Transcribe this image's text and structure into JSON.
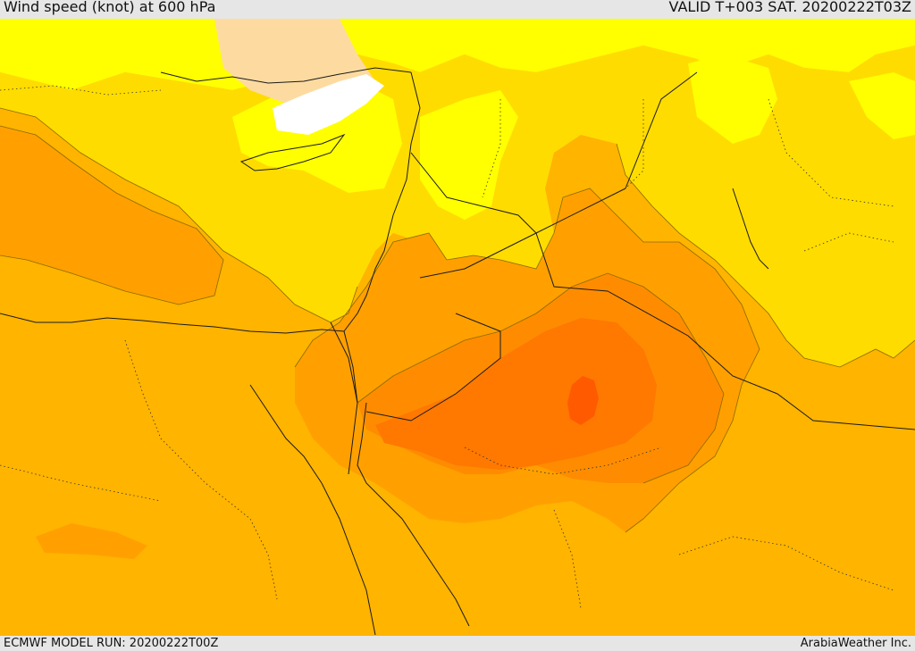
{
  "header": {
    "title": "Wind speed (knot) at 600 hPa",
    "valid": "VALID T+003 SAT. 20200222T03Z"
  },
  "footer": {
    "model_run": "ECMWF MODEL RUN: 20200222T00Z",
    "credit": "ArabiaWeather Inc."
  },
  "colors": {
    "very_low": "#ffffff",
    "low": "#fddba0",
    "light": "#ffff00",
    "moderate": "#ffdc00",
    "medium": "#ffb400",
    "strong": "#ffa000",
    "stronger": "#ff8c00",
    "high": "#ff7800",
    "max": "#ff5a00",
    "lines": "#1a1a1a"
  }
}
